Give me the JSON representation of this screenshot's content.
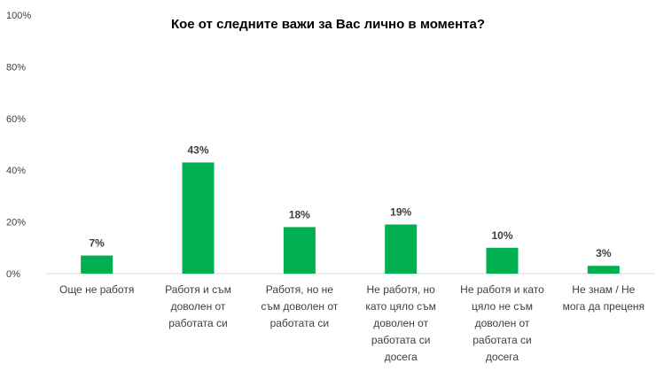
{
  "chart_data": {
    "type": "bar",
    "title": "Кое от следните важи за Вас лично в момента?",
    "categories": [
      [
        "Още не работя"
      ],
      [
        "Работя и съм",
        "доволен от",
        "работата си"
      ],
      [
        "Работя, но не",
        "съм доволен от",
        "работата си"
      ],
      [
        "Не работя, но",
        "като цяло съм",
        "доволен от",
        "работата си",
        "досега"
      ],
      [
        "Не работя и като",
        "цяло не съм",
        "доволен от",
        "работата си",
        "досега"
      ],
      [
        "Не знам / Не",
        "мога да преценя"
      ]
    ],
    "values": [
      7,
      43,
      18,
      19,
      10,
      3
    ],
    "value_labels": [
      "7%",
      "43%",
      "18%",
      "19%",
      "10%",
      "3%"
    ],
    "yticks": [
      "0%",
      "20%",
      "40%",
      "60%",
      "80%",
      "100%"
    ],
    "ylim": [
      0,
      100
    ],
    "xlabel": "",
    "ylabel": "",
    "grid": false,
    "bar_color": "#00b050"
  }
}
